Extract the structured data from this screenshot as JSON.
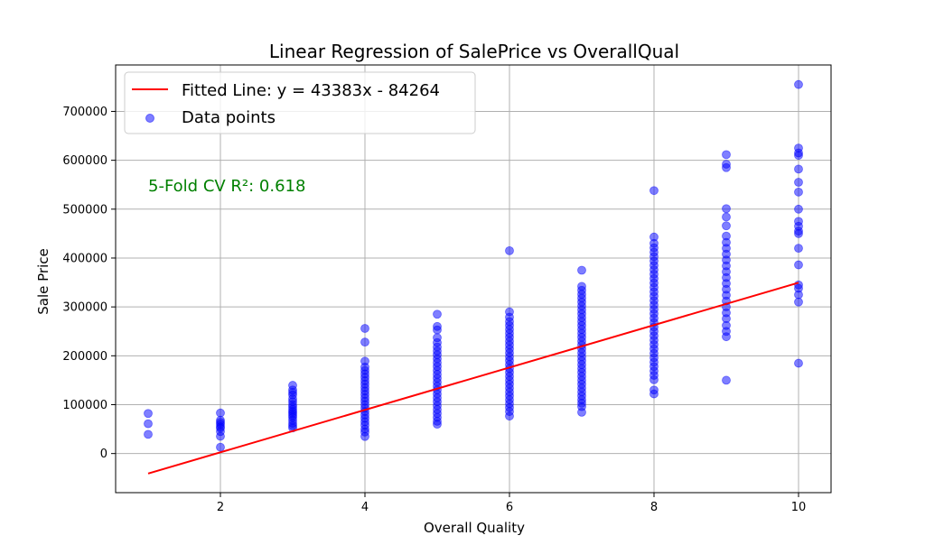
{
  "chart_data": {
    "type": "scatter",
    "title": "Linear Regression of SalePrice vs OverallQual",
    "xlabel": "Overall Quality",
    "ylabel": "Sale Price",
    "xlim": [
      0.55,
      10.45
    ],
    "ylim": [
      -80000,
      795000
    ],
    "x_ticks": [
      2,
      4,
      6,
      8,
      10
    ],
    "y_ticks": [
      0,
      100000,
      200000,
      300000,
      400000,
      500000,
      600000,
      700000
    ],
    "x_tick_labels": [
      "2",
      "4",
      "6",
      "8",
      "10"
    ],
    "y_tick_labels": [
      "0",
      "100000",
      "200000",
      "300000",
      "400000",
      "500000",
      "600000",
      "700000"
    ],
    "grid": true,
    "legend_position": "top-left",
    "annotation": "5-Fold CV R²: 0.618",
    "annotation_color": "#008000",
    "series": [
      {
        "name": "Fitted Line: y = 43383x - 84264",
        "kind": "line",
        "color": "#ff0000",
        "slope": 43383,
        "intercept": -84264,
        "x": [
          1,
          10
        ],
        "y": [
          -40881,
          349566
        ]
      },
      {
        "name": "Data points",
        "kind": "scatter",
        "color": "#0000ff",
        "opacity": 0.5,
        "points": [
          [
            1,
            82000
          ],
          [
            1,
            61000
          ],
          [
            1,
            39300
          ],
          [
            2,
            83000
          ],
          [
            2,
            68000
          ],
          [
            2,
            64000
          ],
          [
            2,
            60000
          ],
          [
            2,
            55000
          ],
          [
            2,
            52000
          ],
          [
            2,
            45000
          ],
          [
            2,
            35300
          ],
          [
            2,
            13000
          ],
          [
            3,
            139600
          ],
          [
            3,
            130000
          ],
          [
            3,
            125000
          ],
          [
            3,
            120000
          ],
          [
            3,
            112000
          ],
          [
            3,
            106000
          ],
          [
            3,
            100000
          ],
          [
            3,
            95000
          ],
          [
            3,
            90000
          ],
          [
            3,
            86000
          ],
          [
            3,
            82000
          ],
          [
            3,
            78000
          ],
          [
            3,
            74000
          ],
          [
            3,
            68000
          ],
          [
            3,
            62000
          ],
          [
            3,
            57000
          ],
          [
            3,
            52500
          ],
          [
            4,
            256000
          ],
          [
            4,
            228000
          ],
          [
            4,
            189000
          ],
          [
            4,
            177000
          ],
          [
            4,
            170000
          ],
          [
            4,
            163000
          ],
          [
            4,
            156000
          ],
          [
            4,
            149000
          ],
          [
            4,
            142000
          ],
          [
            4,
            135000
          ],
          [
            4,
            128000
          ],
          [
            4,
            121000
          ],
          [
            4,
            114000
          ],
          [
            4,
            107000
          ],
          [
            4,
            100000
          ],
          [
            4,
            93000
          ],
          [
            4,
            86000
          ],
          [
            4,
            79000
          ],
          [
            4,
            72000
          ],
          [
            4,
            65000
          ],
          [
            4,
            58000
          ],
          [
            4,
            50000
          ],
          [
            4,
            44000
          ],
          [
            4,
            34900
          ],
          [
            5,
            285000
          ],
          [
            5,
            260000
          ],
          [
            5,
            253000
          ],
          [
            5,
            237000
          ],
          [
            5,
            227000
          ],
          [
            5,
            218000
          ],
          [
            5,
            210000
          ],
          [
            5,
            202000
          ],
          [
            5,
            194000
          ],
          [
            5,
            186000
          ],
          [
            5,
            178000
          ],
          [
            5,
            170000
          ],
          [
            5,
            162000
          ],
          [
            5,
            154000
          ],
          [
            5,
            146000
          ],
          [
            5,
            138000
          ],
          [
            5,
            130000
          ],
          [
            5,
            122000
          ],
          [
            5,
            114000
          ],
          [
            5,
            106000
          ],
          [
            5,
            98000
          ],
          [
            5,
            90000
          ],
          [
            5,
            82000
          ],
          [
            5,
            74000
          ],
          [
            5,
            66000
          ],
          [
            5,
            60000
          ],
          [
            6,
            415000
          ],
          [
            6,
            290000
          ],
          [
            6,
            279000
          ],
          [
            6,
            270000
          ],
          [
            6,
            262000
          ],
          [
            6,
            254000
          ],
          [
            6,
            246000
          ],
          [
            6,
            238000
          ],
          [
            6,
            230000
          ],
          [
            6,
            222000
          ],
          [
            6,
            214000
          ],
          [
            6,
            206000
          ],
          [
            6,
            198000
          ],
          [
            6,
            190000
          ],
          [
            6,
            182000
          ],
          [
            6,
            174000
          ],
          [
            6,
            166000
          ],
          [
            6,
            158000
          ],
          [
            6,
            150000
          ],
          [
            6,
            142000
          ],
          [
            6,
            134000
          ],
          [
            6,
            126000
          ],
          [
            6,
            118000
          ],
          [
            6,
            110000
          ],
          [
            6,
            102000
          ],
          [
            6,
            94000
          ],
          [
            6,
            86000
          ],
          [
            6,
            76500
          ],
          [
            7,
            375000
          ],
          [
            7,
            342000
          ],
          [
            7,
            334000
          ],
          [
            7,
            326000
          ],
          [
            7,
            318000
          ],
          [
            7,
            310000
          ],
          [
            7,
            302000
          ],
          [
            7,
            294000
          ],
          [
            7,
            286000
          ],
          [
            7,
            278000
          ],
          [
            7,
            270000
          ],
          [
            7,
            262000
          ],
          [
            7,
            254000
          ],
          [
            7,
            246000
          ],
          [
            7,
            238000
          ],
          [
            7,
            230000
          ],
          [
            7,
            222000
          ],
          [
            7,
            214000
          ],
          [
            7,
            206000
          ],
          [
            7,
            198000
          ],
          [
            7,
            190000
          ],
          [
            7,
            182000
          ],
          [
            7,
            174000
          ],
          [
            7,
            166000
          ],
          [
            7,
            158000
          ],
          [
            7,
            150000
          ],
          [
            7,
            142000
          ],
          [
            7,
            134000
          ],
          [
            7,
            126000
          ],
          [
            7,
            118000
          ],
          [
            7,
            110000
          ],
          [
            7,
            103000
          ],
          [
            7,
            96000
          ],
          [
            7,
            84500
          ],
          [
            8,
            538000
          ],
          [
            8,
            443000
          ],
          [
            8,
            430000
          ],
          [
            8,
            421000
          ],
          [
            8,
            412000
          ],
          [
            8,
            403000
          ],
          [
            8,
            394000
          ],
          [
            8,
            385000
          ],
          [
            8,
            376000
          ],
          [
            8,
            367000
          ],
          [
            8,
            358000
          ],
          [
            8,
            349000
          ],
          [
            8,
            340000
          ],
          [
            8,
            331000
          ],
          [
            8,
            322000
          ],
          [
            8,
            313000
          ],
          [
            8,
            304000
          ],
          [
            8,
            295000
          ],
          [
            8,
            286000
          ],
          [
            8,
            277000
          ],
          [
            8,
            268000
          ],
          [
            8,
            259000
          ],
          [
            8,
            250000
          ],
          [
            8,
            241000
          ],
          [
            8,
            232000
          ],
          [
            8,
            223000
          ],
          [
            8,
            214000
          ],
          [
            8,
            205000
          ],
          [
            8,
            196000
          ],
          [
            8,
            187000
          ],
          [
            8,
            178000
          ],
          [
            8,
            169000
          ],
          [
            8,
            160000
          ],
          [
            8,
            151000
          ],
          [
            8,
            130000
          ],
          [
            8,
            122000
          ],
          [
            9,
            611600
          ],
          [
            9,
            592000
          ],
          [
            9,
            585000
          ],
          [
            9,
            501000
          ],
          [
            9,
            484000
          ],
          [
            9,
            466000
          ],
          [
            9,
            445000
          ],
          [
            9,
            432000
          ],
          [
            9,
            420000
          ],
          [
            9,
            408000
          ],
          [
            9,
            396000
          ],
          [
            9,
            384000
          ],
          [
            9,
            372000
          ],
          [
            9,
            360000
          ],
          [
            9,
            348000
          ],
          [
            9,
            336000
          ],
          [
            9,
            324000
          ],
          [
            9,
            312000
          ],
          [
            9,
            300000
          ],
          [
            9,
            288000
          ],
          [
            9,
            276000
          ],
          [
            9,
            262000
          ],
          [
            9,
            250000
          ],
          [
            9,
            239000
          ],
          [
            9,
            150000
          ],
          [
            10,
            755000
          ],
          [
            10,
            625000
          ],
          [
            10,
            615000
          ],
          [
            10,
            610000
          ],
          [
            10,
            582000
          ],
          [
            10,
            555000
          ],
          [
            10,
            535000
          ],
          [
            10,
            500000
          ],
          [
            10,
            475000
          ],
          [
            10,
            465000
          ],
          [
            10,
            455000
          ],
          [
            10,
            450000
          ],
          [
            10,
            420000
          ],
          [
            10,
            386000
          ],
          [
            10,
            345000
          ],
          [
            10,
            338000
          ],
          [
            10,
            325000
          ],
          [
            10,
            310000
          ],
          [
            10,
            184750
          ]
        ]
      }
    ]
  }
}
